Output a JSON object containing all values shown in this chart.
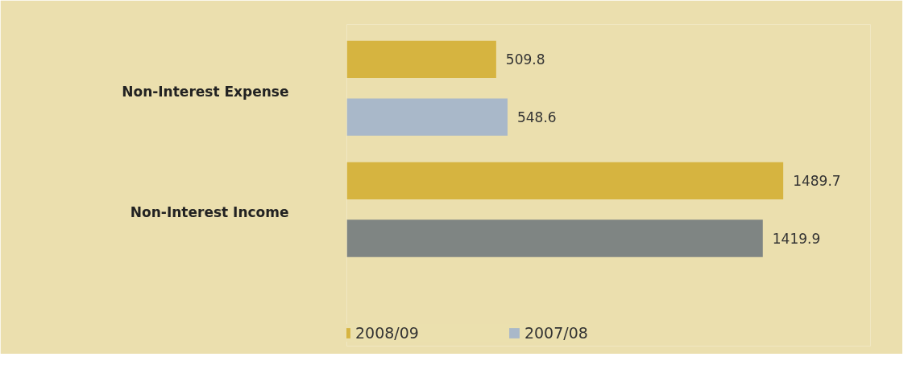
{
  "chart_data": {
    "type": "bar",
    "orientation": "horizontal",
    "categories": [
      "Non-Interest Expense",
      "Non-Interest Income"
    ],
    "series": [
      {
        "name": "2008/09",
        "color": "#d6b440",
        "values": [
          509.8,
          1489.7
        ]
      },
      {
        "name": "2007/08",
        "color": "#757b79",
        "colors": [
          "#a9b8c9",
          "#7f8583"
        ],
        "values": [
          548.6,
          1419.9
        ]
      }
    ],
    "data_labels": true,
    "legend": "bottom",
    "grid": false,
    "tick_labels": "y"
  }
}
